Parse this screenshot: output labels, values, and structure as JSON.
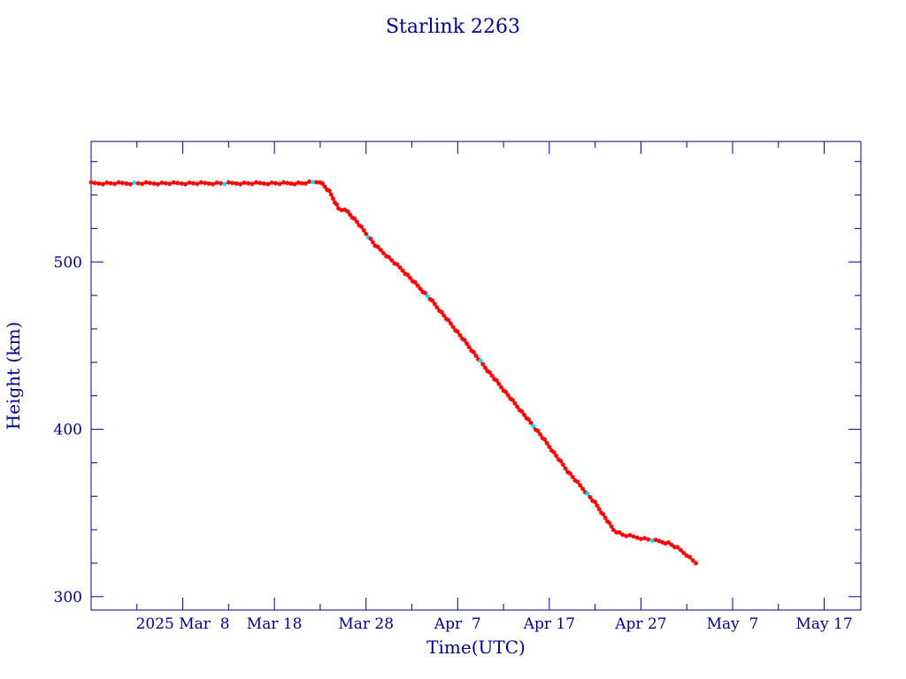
{
  "chart_data": {
    "type": "line",
    "title": "Starlink 2263",
    "xlabel": "Time(UTC)",
    "ylabel": "Height (km)",
    "xlim": [
      "2025-02-26",
      "2025-05-21"
    ],
    "ylim": [
      292,
      572
    ],
    "y_ticks": [
      300,
      400,
      500
    ],
    "x_ticks": [
      {
        "date": "2025-03-08",
        "label": "2025 Mar  8"
      },
      {
        "date": "2025-03-18",
        "label": "Mar 18"
      },
      {
        "date": "2025-03-28",
        "label": "Mar 28"
      },
      {
        "date": "2025-04-07",
        "label": "Apr  7"
      },
      {
        "date": "2025-04-17",
        "label": "Apr 17"
      },
      {
        "date": "2025-04-27",
        "label": "Apr 27"
      },
      {
        "date": "2025-05-07",
        "label": "May  7"
      },
      {
        "date": "2025-05-17",
        "label": "May 17"
      }
    ],
    "grid": false,
    "colors": {
      "axis": "#00008b",
      "line": "#1a1a1a",
      "marker": "#ff0000",
      "highlight": "#00e5ee"
    },
    "series": [
      {
        "marker": "asterisk",
        "x": [
          "2025-02-26",
          "2025-03-01",
          "2025-03-04",
          "2025-03-07",
          "2025-03-10",
          "2025-03-13",
          "2025-03-16",
          "2025-03-19",
          "2025-03-21",
          "2025-03-23",
          "2025-03-24",
          "2025-03-25",
          "2025-03-26",
          "2025-03-27",
          "2025-03-29",
          "2025-04-01",
          "2025-04-04",
          "2025-04-07",
          "2025-04-10",
          "2025-04-13",
          "2025-04-16",
          "2025-04-19",
          "2025-04-22",
          "2025-04-24",
          "2025-04-25",
          "2025-04-27",
          "2025-04-29",
          "2025-04-30",
          "2025-05-01",
          "2025-05-02",
          "2025-05-03"
        ],
        "y": [
          547,
          547,
          547,
          547,
          547,
          547,
          547,
          547,
          547,
          548,
          542,
          532,
          530,
          524,
          510,
          495,
          478,
          458,
          437,
          417,
          397,
          375,
          356,
          340,
          337,
          335,
          333,
          332,
          329,
          325,
          320
        ]
      }
    ]
  }
}
